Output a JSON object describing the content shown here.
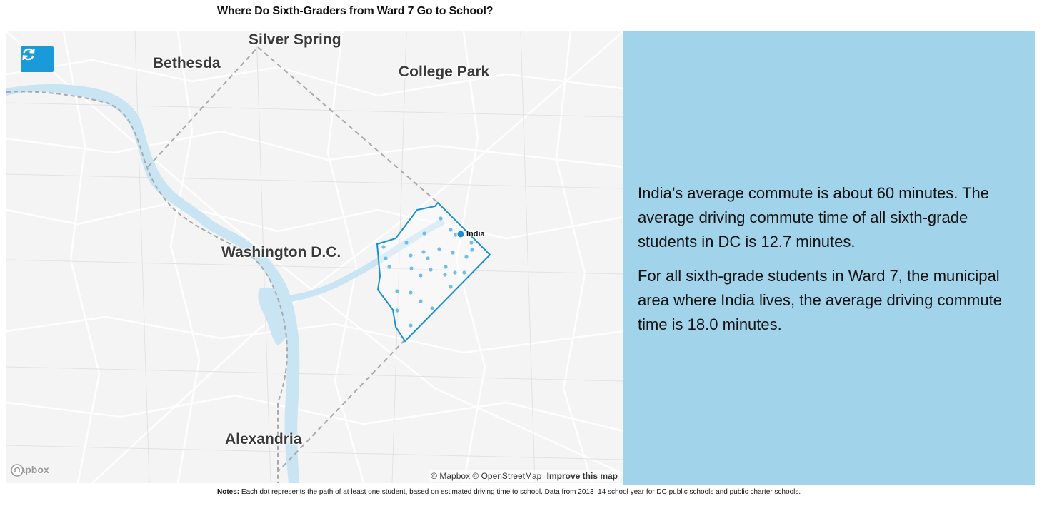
{
  "title": "Where Do Sixth-Graders from Ward 7 Go to School?",
  "map": {
    "cities": [
      {
        "name": "Silver Spring"
      },
      {
        "name": "Bethesda"
      },
      {
        "name": "College Park"
      },
      {
        "name": "Washington D.C."
      },
      {
        "name": "Alexandria"
      }
    ],
    "marker_label": "India",
    "logo_text": "mapbox",
    "attribution": "© Mapbox © OpenStreetMap",
    "improve_link": "Improve this map",
    "colors": {
      "water": "#c9e4f2",
      "roads": "#ffffff",
      "ward_outline": "#1a8fd0",
      "dots": "#5bb3e3",
      "marker": "#1a8fd0",
      "boundary": "#a9a9a9"
    }
  },
  "panel": {
    "paragraph1": "India’s average commute is about 60 minutes. The average driving commute time of all sixth-grade students in DC is 12.7 minutes.",
    "paragraph2": "For all sixth-grade students in Ward 7, the municipal area where India lives, the average driving commute time is 18.0 minutes.",
    "background": "#a1d3ea"
  },
  "notes": {
    "label": "Notes:",
    "text": "Each dot represents the path of at least one student, based on estimated driving time to school. Data from 2013–14 school year for DC public schools and public charter schools."
  }
}
